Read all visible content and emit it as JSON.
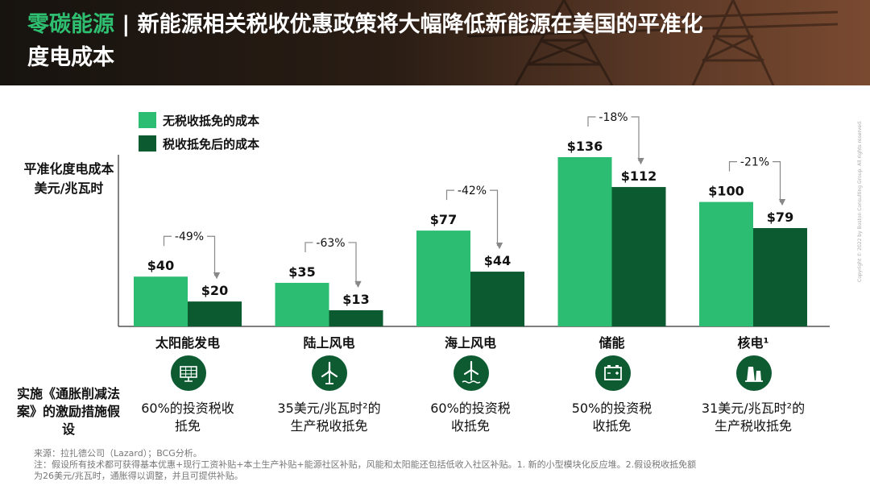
{
  "header": {
    "title_accent": "零碳能源",
    "title_sep": " | ",
    "title_line1": "新能源相关税收优惠政策将大幅降低新能源在美国的平准化",
    "title_line2": "度电成本"
  },
  "legend": {
    "before": "无税收抵免的成本",
    "after": "税收抵免后的成本"
  },
  "ylabel": {
    "line1": "平准化度电成本",
    "line2": "美元/兆瓦时"
  },
  "assumption_label": "实施《通胀削减法案》的激励措施假设",
  "colors": {
    "before": "#2dbd72",
    "after": "#0c5a30",
    "header_accent": "#2fbf71"
  },
  "icons": [
    "solar-panel-icon",
    "wind-turbine-icon",
    "offshore-wind-icon",
    "battery-storage-icon",
    "nuclear-plant-icon"
  ],
  "chart_data": {
    "type": "bar",
    "categories": [
      "太阳能发电",
      "陆上风电",
      "海上风电",
      "储能",
      "核电¹"
    ],
    "series": [
      {
        "name": "无税收抵免的成本",
        "values": [
          40,
          35,
          77,
          136,
          100
        ],
        "labels": [
          "$40",
          "$35",
          "$77",
          "$136",
          "$100"
        ]
      },
      {
        "name": "税收抵免后的成本",
        "values": [
          20,
          13,
          44,
          112,
          79
        ],
        "labels": [
          "$20",
          "$13",
          "$44",
          "$112",
          "$79"
        ]
      }
    ],
    "changes": [
      "-49%",
      "-63%",
      "-42%",
      "-18%",
      "-21%"
    ],
    "ylim": [
      0,
      136
    ],
    "grid": false,
    "legend": "top-left"
  },
  "policies": [
    {
      "line1": "60%的投资税收",
      "line2": "抵免"
    },
    {
      "line1": "35美元/兆瓦时²的",
      "line2": "生产税收抵免"
    },
    {
      "line1": "60%的投资税",
      "line2": "收抵免"
    },
    {
      "line1": "50%的投资税",
      "line2": "收抵免"
    },
    {
      "line1": "31美元/兆瓦时²的",
      "line2": "生产税收抵免"
    }
  ],
  "footer": {
    "source": "来源：拉扎德公司（Lazard）；BCG分析。",
    "note1": "注：假设所有技术都可获得基本优惠+现行工资补贴+本土生产补贴+能源社区补贴，风能和太阳能还包括低收入社区补贴。1. 新的小型模块化反应堆。2.假设税收抵免额",
    "note2": "为26美元/兆瓦时，通胀得以调整，并且可提供补贴。"
  },
  "copyright": "Copyright © 2022 by Boston Consulting Group. All rights reserved."
}
